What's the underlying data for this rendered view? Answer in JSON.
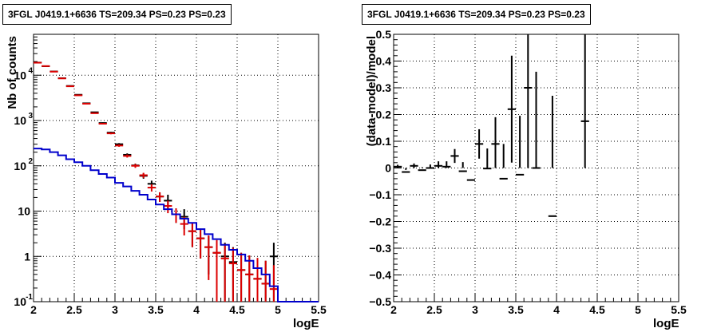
{
  "chart_data": [
    {
      "type": "line",
      "title": "3FGL J0419.1+6636 TS=209.34 PS=0.23 PS=0.23",
      "xlabel": "logE",
      "ylabel": "Nb of counts",
      "xlim": [
        2,
        5.5
      ],
      "ylim": [
        0.1,
        80000
      ],
      "yscale": "log",
      "grid": true,
      "x_ticks": [
        2,
        2.5,
        3,
        3.5,
        4,
        4.5,
        5,
        5.5
      ],
      "x_tick_labels": [
        "2",
        "2.5",
        "3",
        "3.5",
        "4",
        "4.5",
        "5",
        "5.5"
      ],
      "y_ticks": [
        0.1,
        1,
        10,
        100,
        1000,
        10000
      ],
      "y_tick_labels": [
        "10^-1",
        "1",
        "10",
        "10^2",
        "10^3",
        "10^4"
      ],
      "bin_width": 0.1,
      "series": [
        {
          "color": "#000000",
          "style": "points",
          "x": [
            2.05,
            2.15,
            2.25,
            2.35,
            2.45,
            2.55,
            2.65,
            2.75,
            2.85,
            2.95,
            3.05,
            3.15,
            3.25,
            3.35,
            3.45,
            3.55,
            3.65,
            3.75,
            3.85,
            3.95,
            4.05,
            4.15,
            4.25,
            4.35,
            4.45,
            4.55,
            4.65,
            4.75,
            4.85,
            4.95
          ],
          "y": [
            19000,
            15800,
            12100,
            8600,
            5800,
            3700,
            2400,
            1520,
            880,
            540,
            300,
            175,
            102,
            60,
            40,
            21,
            17,
            8.5,
            7.5,
            3.6,
            2.5,
            1.6,
            1.2,
            1.0,
            0.75,
            0.5,
            0.4,
            0.32,
            0.25,
            1.0
          ],
          "err": [
            140,
            125,
            110,
            93,
            76,
            61,
            49,
            39,
            30,
            23,
            17,
            13,
            10,
            8,
            7,
            5,
            6,
            3,
            3.5,
            2,
            1.6,
            1.2,
            1.0,
            1.0,
            0.85,
            0.7,
            0.65,
            0.6,
            0.55,
            1.0
          ]
        },
        {
          "color": "#dd0000",
          "style": "points",
          "x": [
            2.05,
            2.15,
            2.25,
            2.35,
            2.45,
            2.55,
            2.65,
            2.75,
            2.85,
            2.95,
            3.05,
            3.15,
            3.25,
            3.35,
            3.45,
            3.55,
            3.65,
            3.75,
            3.85,
            3.95,
            4.05,
            4.15,
            4.25,
            4.35,
            4.45,
            4.55,
            4.65,
            4.75,
            4.85,
            4.95
          ],
          "y": [
            18900,
            15900,
            12000,
            8500,
            5700,
            3600,
            2350,
            1450,
            850,
            520,
            280,
            165,
            100,
            62,
            33,
            21,
            13,
            8.5,
            5.2,
            3.6,
            2.5,
            1.6,
            1.2,
            0.9,
            0.7,
            0.5,
            0.4,
            0.32,
            0.25,
            0.19
          ],
          "err": [
            140,
            125,
            110,
            93,
            76,
            61,
            49,
            39,
            30,
            23,
            17,
            13,
            10,
            8,
            6,
            5,
            4,
            3,
            2.3,
            2,
            1.6,
            1.3,
            1.1,
            1.0,
            0.85,
            0.7,
            0.65,
            0.6,
            0.55,
            0.45
          ]
        },
        {
          "color": "#0000cc",
          "style": "step",
          "x": [
            2.05,
            2.15,
            2.25,
            2.35,
            2.45,
            2.55,
            2.65,
            2.75,
            2.85,
            2.95,
            3.05,
            3.15,
            3.25,
            3.35,
            3.45,
            3.55,
            3.65,
            3.75,
            3.85,
            3.95,
            4.05,
            4.15,
            4.25,
            4.35,
            4.45,
            4.55,
            4.65,
            4.75,
            4.85,
            4.95,
            5.05,
            5.15,
            5.25,
            5.35,
            5.45
          ],
          "y": [
            240,
            230,
            200,
            170,
            140,
            120,
            100,
            80,
            66,
            55,
            42,
            35,
            28,
            23,
            18,
            14,
            11,
            8.5,
            6.8,
            5.5,
            4.0,
            3.1,
            2.4,
            1.8,
            1.4,
            1.1,
            0.8,
            0.55,
            0.4,
            0.22,
            0.1,
            0.1,
            0.1,
            0.1,
            0.1
          ]
        }
      ]
    },
    {
      "type": "scatter",
      "title": "3FGL J0419.1+6636 TS=209.34 PS=0.23 PS=0.23",
      "xlabel": "logE",
      "ylabel": "(data-model)/model",
      "xlim": [
        2,
        5.5
      ],
      "ylim": [
        -0.5,
        0.5
      ],
      "grid": true,
      "x_ticks": [
        2,
        2.5,
        3,
        3.5,
        4,
        4.5,
        5,
        5.5
      ],
      "x_tick_labels": [
        "2",
        "2.5",
        "3",
        "3.5",
        "4",
        "4.5",
        "5",
        "5.5"
      ],
      "y_ticks": [
        -0.5,
        -0.4,
        -0.3,
        -0.2,
        -0.1,
        0,
        0.1,
        0.2,
        0.3,
        0.4,
        0.5
      ],
      "y_tick_labels": [
        "−0.5",
        "−0.4",
        "−0.3",
        "−0.2",
        "−0.1",
        "0",
        "0.1",
        "0.2",
        "0.3",
        "0.4",
        "0.5"
      ],
      "bin_width": 0.1,
      "series": [
        {
          "color": "#000000",
          "style": "points",
          "x": [
            2.05,
            2.15,
            2.25,
            2.35,
            2.45,
            2.55,
            2.65,
            2.75,
            2.85,
            2.95,
            3.05,
            3.15,
            3.25,
            3.35,
            3.45,
            3.55,
            3.65,
            3.75,
            3.95,
            4.35
          ],
          "y": [
            0.005,
            -0.015,
            0.008,
            -0.008,
            0.0,
            0.008,
            0.005,
            0.045,
            -0.012,
            -0.045,
            0.09,
            -0.002,
            0.09,
            -0.04,
            0.22,
            -0.025,
            0.3,
            0.0,
            -0.18,
            0.175
          ],
          "err": [
            0.007,
            0.008,
            0.009,
            0.011,
            0.013,
            0.017,
            0.02,
            0.026,
            0.034,
            0.043,
            0.055,
            0.075,
            0.1,
            0.13,
            0.2,
            0.22,
            0.32,
            0.36,
            0.45,
            0.9
          ]
        }
      ]
    }
  ]
}
